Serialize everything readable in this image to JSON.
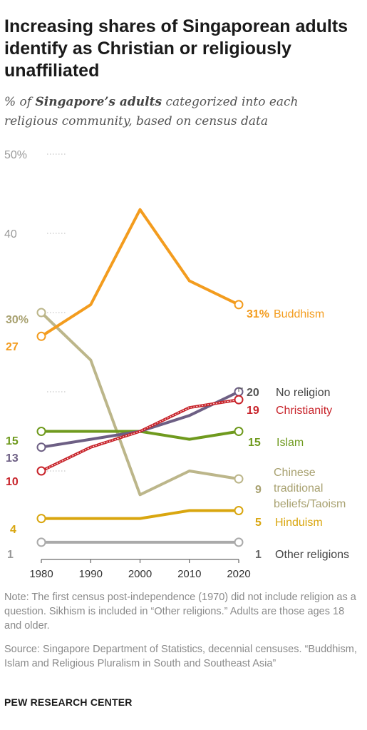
{
  "header": {
    "title": "Increasing shares of Singaporean adults identify as Christian or religiously unaffiliated",
    "subtitle_pre": "% of ",
    "subtitle_bold": "Singapore’s adults",
    "subtitle_post": " categorized into each religious community, based on census data"
  },
  "footer": {
    "note": "Note: The first census post-independence (1970) did not include religion as a question. Sikhism is included in “Other religions.” Adults are those ages 18 and older.",
    "source": "Source: Singapore Department of Statistics, decennial censuses. “Buddhism, Islam and Religious Pluralism in South and Southeast Asia”",
    "brand": "PEW RESEARCH CENTER"
  },
  "chart_data": {
    "type": "line",
    "x": [
      1980,
      1990,
      2000,
      2010,
      2020
    ],
    "ylim": [
      0,
      50
    ],
    "y_ticks": [
      {
        "value": 50,
        "label": "50%"
      },
      {
        "value": 40,
        "label": "40"
      },
      {
        "value": 30,
        "label": ""
      },
      {
        "value": 20,
        "label": ""
      },
      {
        "value": 10,
        "label": ""
      }
    ],
    "series": [
      {
        "name": "Other religions",
        "values": [
          1,
          1,
          1,
          1,
          1
        ],
        "color": "#aaaaaa",
        "start_label": "1",
        "end_label": "1",
        "label_color": "#999999",
        "end_label_color": "#666666"
      },
      {
        "name": "Hinduism",
        "values": [
          4,
          4,
          4,
          5,
          5
        ],
        "color": "#d9a60f",
        "start_label": "4",
        "end_label": "5",
        "label_color": "#d9a60f",
        "end_label_color": "#d9a60f"
      },
      {
        "name": "Chinese traditional beliefs/Taoism",
        "values": [
          30,
          24,
          7,
          10,
          9
        ],
        "color": "#bcb68a",
        "start_label": "30%",
        "end_label": "9",
        "label_color": "#a8a170",
        "end_label_color": "#a8a170"
      },
      {
        "name": "Islam",
        "values": [
          15,
          15,
          15,
          14,
          15
        ],
        "color": "#6f9a1e",
        "start_label": "15",
        "end_label": "15",
        "label_color": "#6f9a1e",
        "end_label_color": "#6f9a1e"
      },
      {
        "name": "No religion",
        "values": [
          13,
          14,
          15,
          17,
          20
        ],
        "color": "#6d5f84",
        "start_label": "13",
        "end_label": "20",
        "label_color": "#6d5f84",
        "end_label_color": "#555555"
      },
      {
        "name": "Christianity",
        "values": [
          10,
          13,
          15,
          18,
          19
        ],
        "color": "#c8242b",
        "start_label": "10",
        "end_label": "19",
        "label_color": "#c8242b",
        "end_label_color": "#c8242b"
      },
      {
        "name": "Buddhism",
        "values": [
          27,
          31,
          43,
          34,
          31
        ],
        "color": "#f39c1e",
        "start_label": "27",
        "end_label": "31%",
        "label_color": "#f39c1e",
        "end_label_color": "#f39c1e"
      }
    ]
  }
}
